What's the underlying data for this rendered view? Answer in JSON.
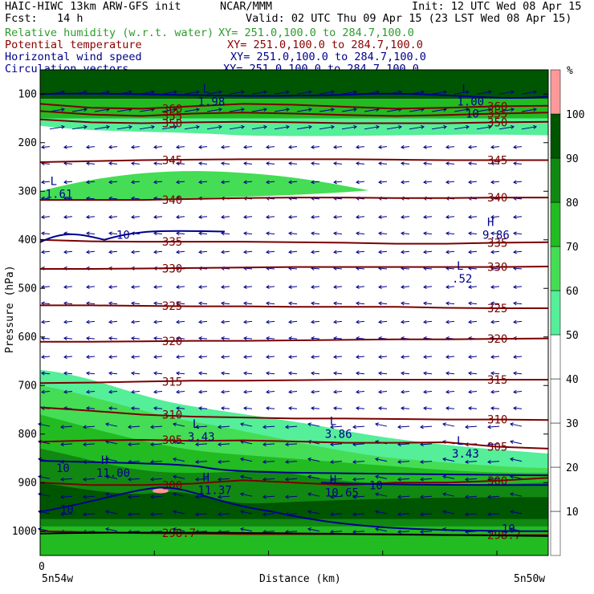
{
  "header": {
    "model": "HAIC-HIWC 13km ARW-GFS init",
    "org": "NCAR/MMM",
    "init": "Init: 12 UTC Wed 08 Apr 15",
    "fcst": "Fcst:   14 h",
    "valid": "Valid: 02 UTC Thu 09 Apr 15 (23 LST Wed 08 Apr 15)",
    "fields": [
      {
        "name": "Relative humidity (w.r.t. water)",
        "xy": "XY= 251.0,100.0 to 284.7,100.0",
        "color": "#2e9b2e"
      },
      {
        "name": "Potential temperature",
        "xy": "XY= 251.0,100.0 to 284.7,100.0",
        "color": "#8b0000"
      },
      {
        "name": "Horizontal wind speed",
        "xy": "XY= 251.0,100.0 to 284.7,100.0",
        "color": "#00008b"
      },
      {
        "name": "Circulation vectors",
        "xy": "XY= 251.0,100.0 to 284.7,100.0",
        "color": "#00008b"
      }
    ]
  },
  "chart_data": {
    "type": "cross-section",
    "xlabel": "Distance (km)",
    "ylabel": "Pressure (hPa)",
    "x_start_tick": "0",
    "x_left_label": "5n54w",
    "x_right_label": "5n50w",
    "y_ticks": [
      100,
      200,
      300,
      400,
      500,
      600,
      700,
      800,
      900,
      1000
    ],
    "ylim": [
      50,
      1050
    ],
    "colorbar": {
      "unit": "%",
      "levels": [
        10,
        20,
        30,
        40,
        50,
        60,
        70,
        80,
        90,
        100
      ],
      "colors": [
        "#ffffff",
        "#ffffff",
        "#ffffff",
        "#ffffff",
        "#ffffff",
        "#55ee99",
        "#44dd55",
        "#22bb22",
        "#118811",
        "#005500",
        "#ff9999"
      ]
    },
    "theta_isentropes": [
      {
        "value": "360",
        "p": [
          120,
          128,
          130,
          125,
          120,
          122,
          126,
          130,
          128,
          125,
          124
        ]
      },
      {
        "value": "355",
        "p": [
          135,
          142,
          145,
          140,
          138,
          140,
          143,
          145,
          143,
          140,
          138
        ]
      },
      {
        "value": "350",
        "p": [
          152,
          158,
          160,
          158,
          157,
          158,
          160,
          160,
          160,
          158,
          157
        ]
      },
      {
        "value": "345",
        "p": [
          240,
          238,
          236,
          235,
          234,
          234,
          234,
          235,
          236,
          236,
          236
        ]
      },
      {
        "value": "340",
        "p": [
          318,
          318,
          318,
          316,
          314,
          313,
          313,
          314,
          314,
          313,
          313
        ]
      },
      {
        "value": "335",
        "p": [
          400,
          403,
          404,
          404,
          404,
          405,
          406,
          408,
          408,
          406,
          405
        ]
      },
      {
        "value": "330",
        "p": [
          460,
          460,
          459,
          458,
          457,
          456,
          456,
          456,
          456,
          456,
          455
        ]
      },
      {
        "value": "325",
        "p": [
          535,
          535,
          536,
          537,
          537,
          538,
          538,
          538,
          540,
          541,
          541
        ]
      },
      {
        "value": "320",
        "p": [
          610,
          610,
          609,
          608,
          608,
          607,
          606,
          605,
          605,
          604,
          603
        ]
      },
      {
        "value": "315",
        "p": [
          695,
          694,
          692,
          690,
          690,
          689,
          688,
          688,
          688,
          688,
          688
        ]
      },
      {
        "value": "310",
        "p": [
          745,
          752,
          760,
          764,
          766,
          768,
          768,
          769,
          770,
          770,
          771
        ]
      },
      {
        "value": "305",
        "p": [
          816,
          813,
          812,
          814,
          813,
          815,
          818,
          818,
          817,
          826,
          830
        ]
      },
      {
        "value": "300",
        "p": [
          900,
          905,
          905,
          902,
          895,
          900,
          905,
          900,
          900,
          896,
          890
        ]
      },
      {
        "value": "298.7",
        "p": [
          1000,
          1002,
          1004,
          1005,
          1006,
          1006,
          1006,
          1007,
          1008,
          1008,
          1008
        ]
      }
    ],
    "wind_isotachs": [
      {
        "value": "10",
        "p_label": 390
      },
      {
        "value": "10",
        "p_label": 870
      },
      {
        "value": "10",
        "p_label": 955
      },
      {
        "value": "10",
        "p_label": 905
      }
    ],
    "extrema_labels": [
      {
        "kind": "L",
        "value": "1.98",
        "x": 0.32,
        "p": 110
      },
      {
        "kind": "L",
        "value": "1.00",
        "x": 0.83,
        "p": 110
      },
      {
        "kind": "L",
        "value": "1.61",
        "x": 0.02,
        "p": 300
      },
      {
        "kind": "H",
        "value": "9.86",
        "x": 0.88,
        "p": 385
      },
      {
        "kind": "L",
        "value": ".52",
        "x": 0.82,
        "p": 475
      },
      {
        "kind": "L",
        "value": "3.43",
        "x": 0.3,
        "p": 800
      },
      {
        "kind": "L",
        "value": "3.86",
        "x": 0.57,
        "p": 795
      },
      {
        "kind": "L",
        "value": "3.43",
        "x": 0.82,
        "p": 835
      },
      {
        "kind": "H",
        "value": "11.00",
        "x": 0.12,
        "p": 875
      },
      {
        "kind": "H",
        "value": "11.37",
        "x": 0.32,
        "p": 910
      },
      {
        "kind": "H",
        "value": "10.65",
        "x": 0.57,
        "p": 915
      }
    ]
  }
}
